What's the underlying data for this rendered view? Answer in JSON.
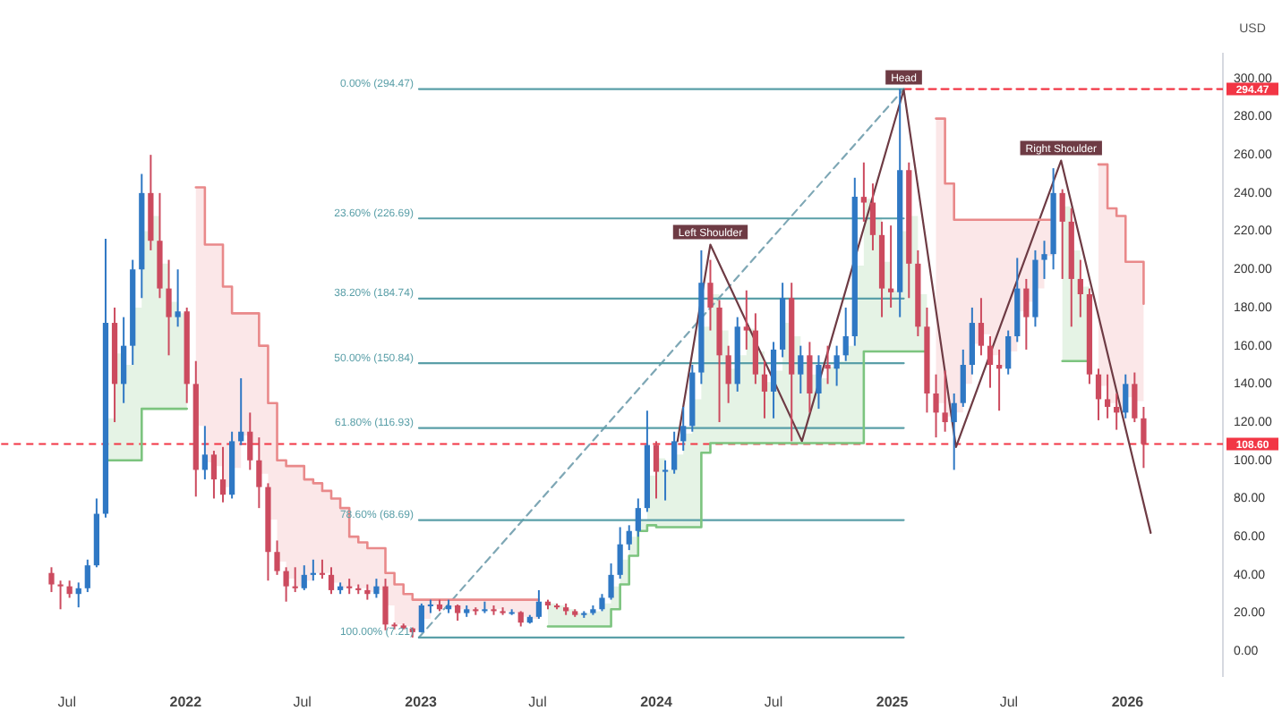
{
  "chart_data": {
    "type": "candlestick",
    "x": [
      "2021-06-07",
      "2021-06-21",
      "2021-07-05",
      "2021-07-19",
      "2021-08-02",
      "2021-08-16",
      "2021-08-30",
      "2021-09-13",
      "2021-09-27",
      "2021-10-11",
      "2021-10-25",
      "2021-11-08",
      "2021-11-22",
      "2021-12-06",
      "2021-12-20",
      "2022-01-03",
      "2022-01-17",
      "2022-01-31",
      "2022-02-14",
      "2022-02-28",
      "2022-03-14",
      "2022-03-28",
      "2022-04-11",
      "2022-04-25",
      "2022-05-09",
      "2022-05-23",
      "2022-06-06",
      "2022-06-20",
      "2022-07-04",
      "2022-07-18",
      "2022-08-01",
      "2022-08-15",
      "2022-08-29",
      "2022-09-12",
      "2022-09-26",
      "2022-10-10",
      "2022-10-24",
      "2022-11-07",
      "2022-11-21",
      "2022-12-05",
      "2022-12-19",
      "2023-01-02",
      "2023-01-16",
      "2023-01-30",
      "2023-02-13",
      "2023-02-27",
      "2023-03-13",
      "2023-03-27",
      "2023-04-10",
      "2023-04-24",
      "2023-05-08",
      "2023-05-22",
      "2023-06-05",
      "2023-06-19",
      "2023-07-03",
      "2023-07-17",
      "2023-07-31",
      "2023-08-14",
      "2023-08-28",
      "2023-09-11",
      "2023-09-25",
      "2023-10-09",
      "2023-10-23",
      "2023-11-06",
      "2023-11-20",
      "2023-12-04",
      "2023-12-18",
      "2024-01-01",
      "2024-01-15",
      "2024-01-29",
      "2024-02-12",
      "2024-02-26",
      "2024-03-11",
      "2024-03-25",
      "2024-04-08",
      "2024-04-22",
      "2024-05-06",
      "2024-05-20",
      "2024-06-03",
      "2024-06-17",
      "2024-07-01",
      "2024-07-15",
      "2024-07-29",
      "2024-08-12",
      "2024-08-26",
      "2024-09-09",
      "2024-09-23",
      "2024-10-07",
      "2024-10-21",
      "2024-11-04",
      "2024-11-18",
      "2024-12-02",
      "2024-12-16",
      "2024-12-30",
      "2025-01-13",
      "2025-01-27",
      "2025-02-10",
      "2025-02-24",
      "2025-03-10",
      "2025-03-24",
      "2025-04-07",
      "2025-04-21",
      "2025-05-05",
      "2025-05-19",
      "2025-06-02",
      "2025-06-16",
      "2025-06-30",
      "2025-07-14",
      "2025-07-28",
      "2025-08-11",
      "2025-08-25",
      "2025-09-08",
      "2025-09-22",
      "2025-10-06",
      "2025-10-20",
      "2025-11-03",
      "2025-11-17",
      "2025-12-01",
      "2025-12-15",
      "2025-12-29",
      "2026-01-12",
      "2026-01-26"
    ],
    "ohlc": [
      [
        41,
        44,
        31,
        35
      ],
      [
        35,
        37,
        22,
        34
      ],
      [
        34,
        37,
        28,
        30
      ],
      [
        30,
        36,
        23,
        33
      ],
      [
        33,
        48,
        31,
        45
      ],
      [
        45,
        80,
        44,
        72
      ],
      [
        72,
        216,
        70,
        172
      ],
      [
        172,
        180,
        120,
        140
      ],
      [
        140,
        175,
        130,
        160
      ],
      [
        160,
        205,
        150,
        200
      ],
      [
        200,
        250,
        185,
        240
      ],
      [
        240,
        260,
        210,
        215
      ],
      [
        215,
        240,
        185,
        190
      ],
      [
        190,
        205,
        155,
        175
      ],
      [
        175,
        200,
        170,
        178
      ],
      [
        178,
        180,
        130,
        140
      ],
      [
        140,
        152,
        81,
        95
      ],
      [
        95,
        118,
        90,
        103
      ],
      [
        103,
        105,
        80,
        90
      ],
      [
        90,
        107,
        78,
        82
      ],
      [
        82,
        115,
        80,
        110
      ],
      [
        110,
        143,
        108,
        115
      ],
      [
        115,
        125,
        95,
        100
      ],
      [
        100,
        112,
        75,
        86
      ],
      [
        86,
        88,
        37,
        52
      ],
      [
        52,
        58,
        40,
        42
      ],
      [
        42,
        44,
        26,
        34
      ],
      [
        34,
        44,
        31,
        33
      ],
      [
        33,
        45,
        32,
        40
      ],
      [
        40,
        48,
        37,
        41
      ],
      [
        41,
        48,
        38,
        40
      ],
      [
        40,
        44,
        30,
        32
      ],
      [
        32,
        36,
        30,
        34
      ],
      [
        34,
        38,
        30,
        33
      ],
      [
        33,
        35,
        30,
        32
      ],
      [
        32,
        35,
        27,
        30
      ],
      [
        30,
        38,
        28,
        34
      ],
      [
        34,
        38,
        11,
        14
      ],
      [
        14,
        15,
        11.5,
        13.5
      ],
      [
        13.5,
        14.5,
        11.5,
        12
      ],
      [
        12,
        12.5,
        7.21,
        10
      ],
      [
        10,
        25,
        9.8,
        24
      ],
      [
        24,
        27,
        20,
        24.5
      ],
      [
        24.5,
        27,
        21,
        22
      ],
      [
        22,
        27,
        20,
        24
      ],
      [
        24,
        24.5,
        16,
        20
      ],
      [
        20,
        24,
        18,
        22
      ],
      [
        22,
        23,
        19,
        21
      ],
      [
        21,
        26,
        20,
        22
      ],
      [
        22,
        24,
        19,
        21
      ],
      [
        21,
        23,
        19,
        20
      ],
      [
        20,
        22,
        19,
        20.5
      ],
      [
        20.5,
        21,
        13,
        15
      ],
      [
        15,
        19,
        14.5,
        18
      ],
      [
        18,
        32,
        17,
        26
      ],
      [
        26,
        27,
        22,
        24
      ],
      [
        24,
        25,
        22,
        23
      ],
      [
        23,
        25,
        19,
        21
      ],
      [
        21,
        22,
        18,
        19
      ],
      [
        19,
        21,
        17.5,
        20
      ],
      [
        20,
        24,
        19,
        22
      ],
      [
        22,
        30,
        21,
        28
      ],
      [
        28,
        46,
        27,
        40
      ],
      [
        40,
        65,
        38,
        56
      ],
      [
        56,
        66,
        53,
        63
      ],
      [
        63,
        80,
        60,
        75
      ],
      [
        75,
        126,
        73,
        108
      ],
      [
        108,
        110,
        80,
        94
      ],
      [
        94,
        100,
        79,
        95
      ],
      [
        95,
        115,
        93,
        110
      ],
      [
        110,
        128,
        105,
        118
      ],
      [
        118,
        150,
        115,
        146
      ],
      [
        146,
        210,
        140,
        193
      ],
      [
        193,
        205,
        168,
        180
      ],
      [
        180,
        184,
        120,
        155
      ],
      [
        155,
        160,
        130,
        140
      ],
      [
        140,
        175,
        136,
        170
      ],
      [
        170,
        189,
        158,
        168
      ],
      [
        168,
        177,
        140,
        145
      ],
      [
        145,
        152,
        122,
        136
      ],
      [
        136,
        162,
        122,
        158
      ],
      [
        158,
        193,
        154,
        185
      ],
      [
        185,
        193,
        110,
        145
      ],
      [
        145,
        160,
        135,
        155
      ],
      [
        155,
        162,
        125,
        135
      ],
      [
        135,
        155,
        127,
        150
      ],
      [
        150,
        160,
        140,
        148
      ],
      [
        148,
        160,
        139,
        155
      ],
      [
        155,
        180,
        152,
        165
      ],
      [
        165,
        248,
        160,
        238
      ],
      [
        238,
        256,
        225,
        235
      ],
      [
        235,
        245,
        210,
        218
      ],
      [
        218,
        225,
        175,
        190
      ],
      [
        190,
        223,
        180,
        188
      ],
      [
        188,
        294.47,
        175,
        252
      ],
      [
        252,
        256,
        185,
        203
      ],
      [
        203,
        210,
        165,
        170
      ],
      [
        170,
        180,
        125,
        135
      ],
      [
        135,
        145,
        112,
        125
      ],
      [
        125,
        147,
        115,
        120
      ],
      [
        120,
        135,
        95,
        130
      ],
      [
        130,
        158,
        128,
        150
      ],
      [
        150,
        180,
        145,
        172
      ],
      [
        172,
        185,
        155,
        160
      ],
      [
        160,
        165,
        138,
        150
      ],
      [
        150,
        158,
        126,
        148
      ],
      [
        148,
        168,
        145,
        165
      ],
      [
        165,
        206,
        162,
        190
      ],
      [
        190,
        195,
        158,
        175
      ],
      [
        175,
        210,
        170,
        205
      ],
      [
        205,
        215,
        195,
        208
      ],
      [
        208,
        253,
        200,
        240
      ],
      [
        240,
        242,
        195,
        225
      ],
      [
        225,
        232,
        170,
        195
      ],
      [
        195,
        205,
        175,
        187
      ],
      [
        187,
        190,
        140,
        145
      ],
      [
        145,
        148,
        121,
        132
      ],
      [
        132,
        145,
        122,
        128
      ],
      [
        128,
        135,
        116,
        125
      ],
      [
        125,
        145,
        122,
        140
      ],
      [
        140,
        146,
        120,
        122
      ],
      [
        122,
        128,
        96,
        108.6
      ]
    ],
    "colors": [
      "#cc4b5f",
      "#cc4b5f",
      "#cc4b5f",
      "#2f78c4",
      "#2f78c4",
      "#2f78c4",
      "#2f78c4",
      "#cc4b5f",
      "#2f78c4",
      "#2f78c4",
      "#2f78c4",
      "#cc4b5f",
      "#cc4b5f",
      "#cc4b5f",
      "#2f78c4",
      "#cc4b5f",
      "#cc4b5f",
      "#2f78c4",
      "#cc4b5f",
      "#cc4b5f",
      "#2f78c4",
      "#2f78c4",
      "#cc4b5f",
      "#cc4b5f",
      "#cc4b5f",
      "#cc4b5f",
      "#cc4b5f",
      "#cc4b5f",
      "#2f78c4",
      "#2f78c4",
      "#cc4b5f",
      "#cc4b5f",
      "#2f78c4",
      "#cc4b5f",
      "#cc4b5f",
      "#cc4b5f",
      "#2f78c4",
      "#cc4b5f",
      "#cc4b5f",
      "#cc4b5f",
      "#cc4b5f",
      "#2f78c4",
      "#2f78c4",
      "#cc4b5f",
      "#2f78c4",
      "#cc4b5f",
      "#2f78c4",
      "#cc4b5f",
      "#2f78c4",
      "#cc4b5f",
      "#cc4b5f",
      "#2f78c4",
      "#cc4b5f",
      "#2f78c4",
      "#2f78c4",
      "#cc4b5f",
      "#cc4b5f",
      "#cc4b5f",
      "#cc4b5f",
      "#2f78c4",
      "#2f78c4",
      "#2f78c4",
      "#2f78c4",
      "#2f78c4",
      "#2f78c4",
      "#2f78c4",
      "#2f78c4",
      "#cc4b5f",
      "#2f78c4",
      "#2f78c4",
      "#2f78c4",
      "#2f78c4",
      "#2f78c4",
      "#cc4b5f",
      "#cc4b5f",
      "#cc4b5f",
      "#2f78c4",
      "#cc4b5f",
      "#cc4b5f",
      "#cc4b5f",
      "#2f78c4",
      "#2f78c4",
      "#cc4b5f",
      "#2f78c4",
      "#cc4b5f",
      "#2f78c4",
      "#cc4b5f",
      "#2f78c4",
      "#2f78c4",
      "#2f78c4",
      "#cc4b5f",
      "#cc4b5f",
      "#cc4b5f",
      "#cc4b5f",
      "#2f78c4",
      "#cc4b5f",
      "#cc4b5f",
      "#cc4b5f",
      "#cc4b5f",
      "#cc4b5f",
      "#2f78c4",
      "#2f78c4",
      "#2f78c4",
      "#cc4b5f",
      "#cc4b5f",
      "#cc4b5f",
      "#2f78c4",
      "#2f78c4",
      "#cc4b5f",
      "#2f78c4",
      "#2f78c4",
      "#2f78c4",
      "#cc4b5f",
      "#cc4b5f",
      "#cc4b5f",
      "#cc4b5f",
      "#cc4b5f",
      "#cc4b5f",
      "#cc4b5f",
      "#2f78c4",
      "#cc4b5f",
      "#cc4b5f"
    ],
    "series": [
      {
        "type": "step",
        "color": "#7cc47f",
        "x": [
          "2021-08-30",
          "2021-09-13",
          "2021-09-27",
          "2021-10-11",
          "2021-10-25",
          "2021-11-08",
          "2021-11-22",
          "2021-12-06",
          "2021-12-20",
          "2022-01-03",
          "2022-01-17",
          "2023-07-17",
          "2023-07-31",
          "2023-08-14",
          "2023-08-28",
          "2023-09-11",
          "2023-09-25",
          "2023-10-09",
          "2023-10-23",
          "2023-11-06",
          "2023-11-20",
          "2023-12-04",
          "2023-12-18",
          "2024-01-01",
          "2024-01-15",
          "2024-01-29",
          "2024-02-12",
          "2024-02-26",
          "2024-03-11",
          "2024-03-25",
          "2024-04-08",
          "2024-04-22",
          "2024-05-06",
          "2024-05-20",
          "2024-06-03",
          "2024-06-17",
          "2024-07-01",
          "2024-07-15",
          "2024-07-29",
          "2024-08-12",
          "2024-08-26",
          "2024-09-09",
          "2024-09-23",
          "2024-10-07",
          "2024-10-21",
          "2024-11-04",
          "2024-11-18",
          "2024-12-02",
          "2024-12-16",
          "2024-12-30",
          "2025-01-13",
          "2025-01-27",
          "2025-02-10",
          "2025-02-24",
          "2025-03-10",
          "2025-09-22",
          "2025-10-06",
          "2025-10-20",
          "2025-11-03"
        ],
        "values": [
          100,
          100,
          100,
          100,
          127,
          127,
          127,
          127,
          127,
          127,
          null,
          13,
          13,
          13,
          13,
          13,
          13,
          13,
          22,
          35,
          50,
          63,
          66,
          65,
          65,
          65,
          65,
          65,
          104,
          109,
          109,
          109,
          109,
          109,
          109,
          109,
          109,
          109,
          109,
          109,
          109,
          109,
          109,
          109,
          109,
          109,
          157,
          157,
          157,
          157,
          157,
          157,
          157,
          157,
          null,
          152,
          152,
          152,
          152
        ],
        "lower": [
          100,
          100,
          100,
          100,
          127,
          127,
          127,
          127,
          127,
          127,
          null,
          13,
          13,
          13,
          13,
          13,
          13,
          13,
          22,
          35,
          50,
          63,
          66,
          65,
          65,
          65,
          65,
          65,
          104,
          109,
          109,
          109,
          109,
          109,
          109,
          109,
          109,
          109,
          109,
          109,
          109,
          109,
          109,
          109,
          109,
          109,
          157,
          157,
          157,
          157,
          157,
          157,
          157,
          157,
          null,
          152,
          152,
          152,
          152
        ],
        "upper": [
          122,
          156,
          150,
          180,
          220,
          228,
          203,
          183,
          177,
          159,
          null,
          25,
          24,
          22,
          20,
          20,
          21,
          25,
          34,
          48,
          60,
          69,
          92,
          101,
          95,
          103,
          114,
          132,
          170,
          187,
          168,
          148,
          155,
          169,
          157,
          141,
          147,
          172,
          165,
          150,
          145,
          143,
          149,
          152,
          160,
          202,
          237,
          227,
          204,
          189,
          220,
          228,
          187,
          157,
          null,
          233,
          210,
          191,
          166
        ]
      },
      {
        "type": "step",
        "color": "#e9898a",
        "x": [
          "2022-01-17",
          "2022-01-31",
          "2022-02-14",
          "2022-02-28",
          "2022-03-14",
          "2022-03-28",
          "2022-04-11",
          "2022-04-25",
          "2022-05-09",
          "2022-05-23",
          "2022-06-06",
          "2022-06-20",
          "2022-07-04",
          "2022-07-18",
          "2022-08-01",
          "2022-08-15",
          "2022-08-29",
          "2022-09-12",
          "2022-09-26",
          "2022-10-10",
          "2022-10-24",
          "2022-11-07",
          "2022-11-21",
          "2022-12-05",
          "2022-12-19",
          "2023-01-02",
          "2023-01-16",
          "2023-01-30",
          "2023-02-13",
          "2023-02-27",
          "2023-03-13",
          "2023-03-27",
          "2023-04-10",
          "2023-04-24",
          "2023-05-08",
          "2023-05-22",
          "2023-06-05",
          "2023-06-19",
          "2023-07-03",
          "2023-07-17",
          "2025-03-10",
          "2025-03-24",
          "2025-04-07",
          "2025-04-21",
          "2025-05-05",
          "2025-05-19",
          "2025-06-02",
          "2025-06-16",
          "2025-06-30",
          "2025-07-14",
          "2025-07-28",
          "2025-08-11",
          "2025-08-25",
          "2025-09-08",
          "2025-09-22",
          "2025-11-17",
          "2025-12-01",
          "2025-12-15",
          "2025-12-29",
          "2026-01-12",
          "2026-01-26"
        ],
        "values": [
          243,
          213,
          213,
          191,
          177,
          177,
          177,
          160,
          130,
          100,
          97,
          97,
          90,
          88,
          84,
          80,
          75,
          60,
          57,
          54,
          54,
          41,
          35,
          30,
          27,
          27,
          27,
          27,
          27,
          27,
          27,
          27,
          27,
          27,
          27,
          27,
          27,
          27,
          27,
          null,
          279,
          245,
          226,
          226,
          226,
          226,
          226,
          226,
          226,
          226,
          226,
          226,
          226,
          226,
          null,
          255,
          232,
          228,
          204,
          204,
          182
        ],
        "lower": [
          118,
          99,
          97,
          86,
          96,
          113,
          108,
          93,
          69,
          47,
          38,
          34,
          37,
          41,
          41,
          36,
          33,
          34,
          33,
          31,
          32,
          24,
          14,
          13,
          11,
          17,
          24,
          23,
          23,
          22,
          21,
          22,
          22,
          22,
          21,
          20,
          18,
          17,
          22,
          null,
          130,
          123,
          125,
          140,
          161,
          166,
          155,
          149,
          157,
          178,
          183,
          190,
          207,
          224,
          null,
          139,
          130,
          127,
          133,
          131,
          115
        ],
        "upper": [
          243,
          213,
          213,
          191,
          177,
          177,
          177,
          160,
          130,
          100,
          97,
          97,
          90,
          88,
          84,
          80,
          75,
          60,
          57,
          54,
          54,
          41,
          35,
          30,
          27,
          27,
          27,
          27,
          27,
          27,
          27,
          27,
          27,
          27,
          27,
          27,
          27,
          27,
          27,
          null,
          279,
          245,
          226,
          226,
          226,
          226,
          226,
          226,
          226,
          226,
          226,
          226,
          226,
          226,
          null,
          255,
          232,
          228,
          204,
          204,
          182
        ]
      },
      {
        "type": "line",
        "color": "#6e3b44",
        "x": [
          "2024-02-03",
          "2024-03-25",
          "2024-08-14",
          "2025-01-19",
          "2025-04-10",
          "2025-09-20",
          "2026-02-06"
        ],
        "values": [
          110,
          213,
          110,
          294,
          107,
          257,
          62
        ]
      },
      {
        "type": "line",
        "name": "0.00% (294.47)",
        "color": "#5a9fa8",
        "x": [
          "2022-12-29",
          "2025-01-19"
        ],
        "values": [
          294.47,
          294.47
        ]
      },
      {
        "type": "line",
        "name": "23.60% (226.69)",
        "color": "#5a9fa8",
        "x": [
          "2022-12-29",
          "2025-01-19"
        ],
        "values": [
          226.69,
          226.69
        ]
      },
      {
        "type": "line",
        "name": "38.20% (184.74)",
        "color": "#5a9fa8",
        "x": [
          "2022-12-29",
          "2025-01-19"
        ],
        "values": [
          184.74,
          184.74
        ]
      },
      {
        "type": "line",
        "name": "50.00% (150.84)",
        "color": "#5a9fa8",
        "x": [
          "2022-12-29",
          "2025-01-19"
        ],
        "values": [
          150.84,
          150.84
        ]
      },
      {
        "type": "line",
        "name": "61.80% (116.93)",
        "color": "#5a9fa8",
        "x": [
          "2022-12-29",
          "2025-01-19"
        ],
        "values": [
          116.93,
          116.93
        ]
      },
      {
        "type": "line",
        "name": "78.60% (68.69)",
        "color": "#5a9fa8",
        "x": [
          "2022-12-29",
          "2025-01-19"
        ],
        "values": [
          68.69,
          68.69
        ]
      },
      {
        "type": "line",
        "name": "100.00% (7.21)",
        "color": "#5a9fa8",
        "x": [
          "2022-12-29",
          "2025-01-19"
        ],
        "values": [
          7.21,
          7.21
        ]
      },
      {
        "type": "line",
        "color": "#7ea7b5",
        "line_style": "dashed",
        "x": [
          "2022-12-29",
          "2025-01-19"
        ],
        "values": [
          7.21,
          294.47
        ]
      },
      {
        "type": "line",
        "color": "#f23645",
        "line_style": "dashed",
        "x": [
          "2025-01-19",
          "2026-05-29"
        ],
        "values": [
          294.47,
          294.47
        ]
      }
    ],
    "ref_lines": [
      {
        "axis": "y",
        "value": 108.6,
        "label": "108.60",
        "color": "#f23645",
        "line_style": "dashed"
      }
    ],
    "annotations": [
      {
        "text": "Left Shoulder",
        "x": "2024-03-25",
        "y": 213
      },
      {
        "text": "Head",
        "x": "2025-01-19",
        "y": 294
      },
      {
        "text": "Right Shoulder",
        "x": "2025-09-20",
        "y": 257
      },
      {
        "text": "294.47",
        "x": "2026-05-29",
        "y": 294.47
      }
    ],
    "ylabel": "USD",
    "xlim": [
      "2021-03-21",
      "2026-05-29"
    ],
    "xticks": [
      {
        "value": "2021-07-01",
        "label": "Jul"
      },
      {
        "value": "2022-01-01",
        "label": "2022"
      },
      {
        "value": "2022-07-01",
        "label": "Jul"
      },
      {
        "value": "2023-01-01",
        "label": "2023"
      },
      {
        "value": "2023-07-01",
        "label": "Jul"
      },
      {
        "value": "2024-01-01",
        "label": "2024"
      },
      {
        "value": "2024-07-01",
        "label": "Jul"
      },
      {
        "value": "2025-01-01",
        "label": "2025"
      },
      {
        "value": "2025-07-01",
        "label": "Jul"
      },
      {
        "value": "2026-01-01",
        "label": "2026"
      }
    ],
    "ylim": [
      -13,
      313
    ],
    "yticks": [
      {
        "value": 0,
        "label": "0.00"
      },
      {
        "value": 20,
        "label": "20.00"
      },
      {
        "value": 40,
        "label": "40.00"
      },
      {
        "value": 60,
        "label": "60.00"
      },
      {
        "value": 80,
        "label": "80.00"
      },
      {
        "value": 100,
        "label": "100.00"
      },
      {
        "value": 120,
        "label": "120.00"
      },
      {
        "value": 140,
        "label": "140.00"
      },
      {
        "value": 160,
        "label": "160.00"
      },
      {
        "value": 180,
        "label": "180.00"
      },
      {
        "value": 200,
        "label": "200.00"
      },
      {
        "value": 220,
        "label": "220.00"
      },
      {
        "value": 240,
        "label": "240.00"
      },
      {
        "value": 260,
        "label": "260.00"
      },
      {
        "value": 280,
        "label": "280.00"
      },
      {
        "value": 300,
        "label": "300.00"
      }
    ]
  }
}
